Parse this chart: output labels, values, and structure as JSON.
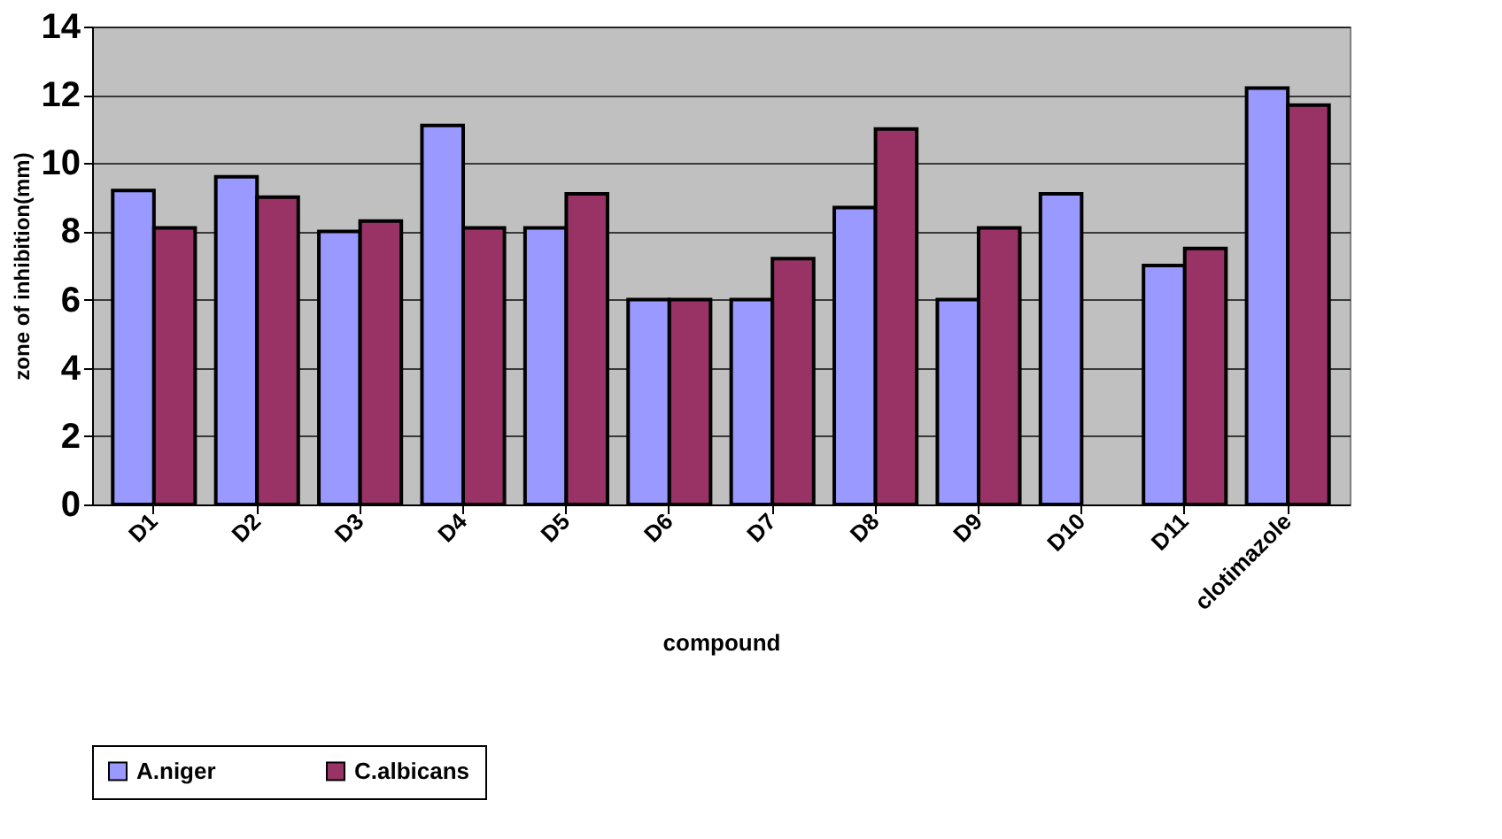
{
  "chart_data": {
    "type": "bar",
    "xlabel": "compound",
    "ylabel": "zone of inhibition(mm)",
    "categories": [
      "D1",
      "D2",
      "D3",
      "D4",
      "D5",
      "D6",
      "D7",
      "D8",
      "D9",
      "D10",
      "D11",
      "clotimazole"
    ],
    "series": [
      {
        "name": "A.niger",
        "color": "#9999ff",
        "values": [
          9.2,
          9.6,
          8.0,
          11.1,
          8.1,
          6.0,
          6.0,
          8.7,
          6.0,
          9.1,
          7.0,
          12.2
        ]
      },
      {
        "name": "C.albicans",
        "color": "#993366",
        "values": [
          8.1,
          9.0,
          8.3,
          8.1,
          9.1,
          6.0,
          7.2,
          11.0,
          8.1,
          null,
          7.5,
          11.7
        ]
      }
    ],
    "ylim": [
      0,
      14
    ],
    "yticks": [
      0,
      2,
      4,
      6,
      8,
      10,
      12,
      14
    ],
    "grid": "y",
    "legend": "bottom"
  }
}
